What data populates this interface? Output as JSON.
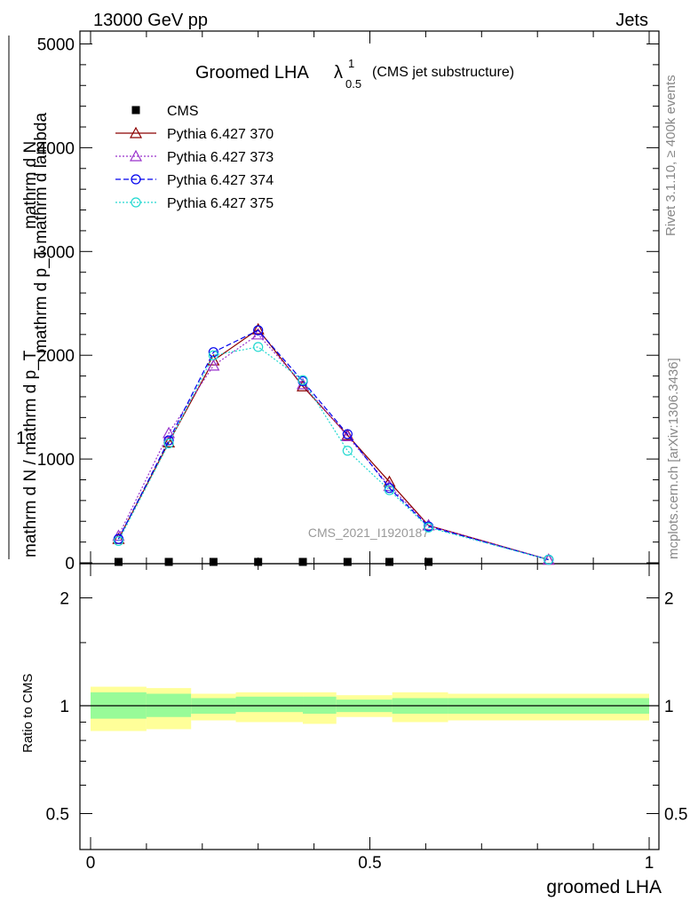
{
  "header": {
    "energy_label": "13000 GeV pp",
    "category_label": "Jets"
  },
  "side_labels": {
    "rivet": "Rivet 3.1.10, ≥ 400k events",
    "mcplots": "mcplots.cern.ch [arXiv:1306.3436]"
  },
  "watermark": "CMS_2021_I1920187",
  "plot_title": {
    "main": "Groomed LHA",
    "lambda": "λ",
    "sup": "1",
    "sub": "0.5",
    "suffix": "(CMS jet substructure)"
  },
  "y_axis_label": {
    "one": "1",
    "numerator": "mathrm d N",
    "denominator": "mathrm d N / mathrm d p_T",
    "right": "mathrm d p_T mathrm d lambda"
  },
  "ratio_ylabel": "Ratio to CMS",
  "chart_data": {
    "type": "line",
    "xlabel": "groomed LHA",
    "x_ticks": [
      "0",
      "0.5",
      "1"
    ],
    "y_ticks_main": [
      "0",
      "1000",
      "2000",
      "3000",
      "4000",
      "5000"
    ],
    "y_ticks_ratio": [
      "0.5",
      "1",
      "2"
    ],
    "xlim": [
      0,
      1
    ],
    "ylim_main": [
      0,
      5000
    ],
    "ylim_ratio": [
      0.4,
      2.3
    ],
    "x": [
      0.05,
      0.14,
      0.22,
      0.3,
      0.38,
      0.46,
      0.535,
      0.605,
      0.82
    ],
    "series": [
      {
        "name": "CMS",
        "color": "#000000",
        "marker": "square",
        "values": [
          0,
          0,
          0,
          0,
          0,
          0,
          0,
          0,
          null
        ]
      },
      {
        "name": "Pythia 6.427 370",
        "color": "#8b0000",
        "marker": "triangle",
        "dash": "solid",
        "values": [
          230,
          1160,
          1950,
          2250,
          1700,
          1230,
          780,
          360,
          30
        ]
      },
      {
        "name": "Pythia 6.427 373",
        "color": "#9932cc",
        "marker": "triangle",
        "dash": "dotted",
        "values": [
          260,
          1250,
          1900,
          2200,
          1720,
          1220,
          740,
          360,
          30
        ]
      },
      {
        "name": "Pythia 6.427 374",
        "color": "#0000ee",
        "marker": "circle",
        "dash": "dashed",
        "values": [
          230,
          1180,
          2030,
          2240,
          1750,
          1240,
          720,
          350,
          30
        ]
      },
      {
        "name": "Pythia 6.427 375",
        "color": "#20d8d0",
        "marker": "circle",
        "dash": "dotted",
        "values": [
          210,
          1150,
          2000,
          2080,
          1760,
          1080,
          700,
          340,
          30
        ]
      }
    ],
    "ratio_bands": {
      "bin_edges": [
        0,
        0.1,
        0.18,
        0.26,
        0.38,
        0.44,
        0.54,
        0.64,
        1.0
      ],
      "inner_low": [
        0.92,
        0.93,
        0.95,
        0.96,
        0.95,
        0.96,
        0.95,
        0.95,
        0.9
      ],
      "inner_high": [
        1.09,
        1.08,
        1.05,
        1.06,
        1.06,
        1.04,
        1.05,
        1.05,
        1.11
      ],
      "outer_low": [
        0.85,
        0.86,
        0.91,
        0.9,
        0.89,
        0.93,
        0.9,
        0.91,
        0.79
      ],
      "outer_high": [
        1.13,
        1.12,
        1.08,
        1.09,
        1.09,
        1.07,
        1.09,
        1.08,
        1.17
      ]
    },
    "colors": {
      "inner_band": "#98fb98",
      "outer_band": "#ffff99"
    },
    "legend_position": "top-left",
    "grid": false
  }
}
